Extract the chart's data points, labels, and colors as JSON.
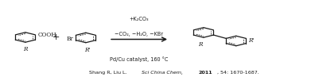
{
  "bg_color": "#ffffff",
  "fig_width": 3.91,
  "fig_height": 1.02,
  "dpi": 100,
  "text_color": "#1a1a1a",
  "above_arrow_line1": "+K₂CO₃",
  "above_arrow_line2": "−CO₂, −H₂O, −KBr",
  "below_arrow_text": "Pd/Cu catalyst, 160 °C",
  "citation_parts": [
    {
      "text": "Shang R, Liu L.  ",
      "bold": false,
      "italic": false
    },
    {
      "text": "Sci China Chem,",
      "bold": false,
      "italic": true
    },
    {
      "text": "  ",
      "bold": false,
      "italic": false
    },
    {
      "text": "2011",
      "bold": true,
      "italic": false
    },
    {
      "text": ", 54: 1670-1687.",
      "bold": false,
      "italic": false
    }
  ],
  "ring_r": 0.062,
  "lw_outer": 0.9,
  "lw_inner": 0.6
}
